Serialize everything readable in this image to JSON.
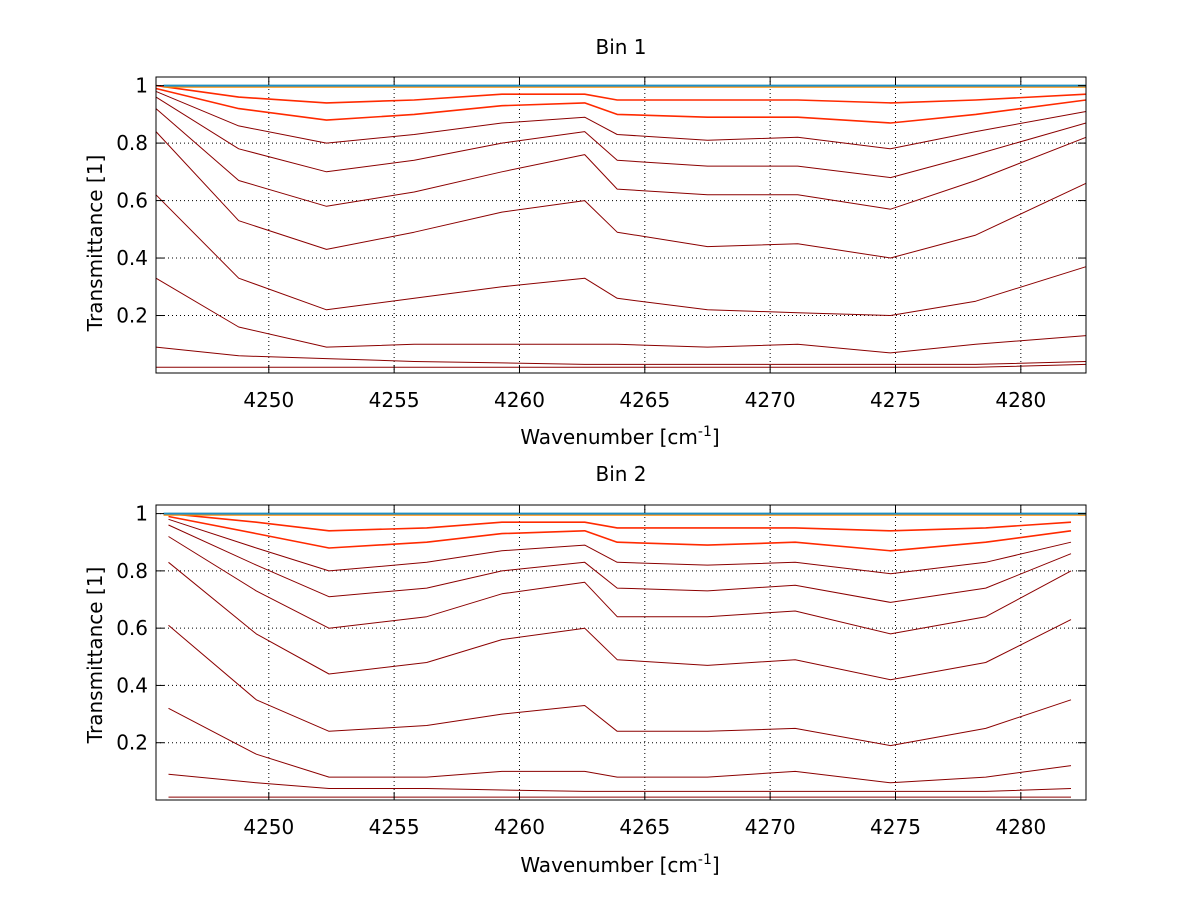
{
  "chart_data": [
    {
      "type": "line",
      "title": "Bin 1",
      "xlabel": "Wavenumber [cm",
      "xlabel_sup": "-1",
      "xlabel_tail": "]",
      "ylabel": "Transmittance [1]",
      "xlim": [
        4245.5,
        4282.6
      ],
      "ylim": [
        0,
        1.03
      ],
      "xticks": [
        "4250",
        "4255",
        "4260",
        "4265",
        "4270",
        "4275",
        "4280"
      ],
      "yticks": [
        "0.2",
        "0.4",
        "0.6",
        "0.8",
        "1"
      ],
      "grid": true,
      "lines": [
        {
          "x": [
            4245.5,
            4248.8,
            4252.3,
            4255.8,
            4259.3,
            4262.6,
            4263.9,
            4267.5,
            4271.1,
            4274.8,
            4278.2,
            4282.6
          ],
          "y": [
            0.02,
            0.02,
            0.02,
            0.02,
            0.02,
            0.02,
            0.02,
            0.02,
            0.02,
            0.02,
            0.02,
            0.03
          ]
        },
        {
          "x": [
            4245.5,
            4248.8,
            4252.3,
            4255.8,
            4259.3,
            4262.6,
            4263.9,
            4267.5,
            4271.1,
            4274.8,
            4278.2,
            4282.6
          ],
          "y": [
            0.09,
            0.06,
            0.05,
            0.04,
            0.035,
            0.03,
            0.03,
            0.03,
            0.03,
            0.03,
            0.03,
            0.04
          ]
        },
        {
          "x": [
            4245.5,
            4248.8,
            4252.3,
            4255.8,
            4259.3,
            4262.6,
            4263.9,
            4267.5,
            4271.1,
            4274.8,
            4278.2,
            4282.6
          ],
          "y": [
            0.33,
            0.16,
            0.09,
            0.1,
            0.1,
            0.1,
            0.1,
            0.09,
            0.1,
            0.07,
            0.1,
            0.13
          ]
        },
        {
          "x": [
            4245.5,
            4248.8,
            4252.3,
            4255.8,
            4259.3,
            4262.6,
            4263.9,
            4267.5,
            4271.1,
            4274.8,
            4278.2,
            4282.6
          ],
          "y": [
            0.62,
            0.33,
            0.22,
            0.26,
            0.3,
            0.33,
            0.26,
            0.22,
            0.21,
            0.2,
            0.25,
            0.37
          ]
        },
        {
          "x": [
            4245.5,
            4248.8,
            4252.3,
            4255.8,
            4259.3,
            4262.6,
            4263.9,
            4267.5,
            4271.1,
            4274.8,
            4278.2,
            4282.6
          ],
          "y": [
            0.84,
            0.53,
            0.43,
            0.49,
            0.56,
            0.6,
            0.49,
            0.44,
            0.45,
            0.4,
            0.48,
            0.66
          ]
        },
        {
          "x": [
            4245.5,
            4248.8,
            4252.3,
            4255.8,
            4259.3,
            4262.6,
            4263.9,
            4267.5,
            4271.1,
            4274.8,
            4278.2,
            4282.6
          ],
          "y": [
            0.92,
            0.67,
            0.58,
            0.63,
            0.7,
            0.76,
            0.64,
            0.62,
            0.62,
            0.57,
            0.67,
            0.82
          ]
        },
        {
          "x": [
            4245.5,
            4248.8,
            4252.3,
            4255.8,
            4259.3,
            4262.6,
            4263.9,
            4267.5,
            4271.1,
            4274.8,
            4278.2,
            4282.6
          ],
          "y": [
            0.96,
            0.78,
            0.7,
            0.74,
            0.8,
            0.84,
            0.74,
            0.72,
            0.72,
            0.68,
            0.76,
            0.87
          ]
        },
        {
          "x": [
            4245.5,
            4248.8,
            4252.3,
            4255.8,
            4259.3,
            4262.6,
            4263.9,
            4267.5,
            4271.1,
            4274.8,
            4278.2,
            4282.6
          ],
          "y": [
            0.98,
            0.86,
            0.8,
            0.83,
            0.87,
            0.89,
            0.83,
            0.81,
            0.82,
            0.78,
            0.84,
            0.91
          ]
        },
        {
          "x": [
            4245.5,
            4248.8,
            4252.3,
            4255.8,
            4259.3,
            4262.6,
            4263.9,
            4267.5,
            4271.1,
            4274.8,
            4278.2,
            4282.6
          ],
          "y": [
            0.99,
            0.92,
            0.88,
            0.9,
            0.93,
            0.94,
            0.9,
            0.89,
            0.89,
            0.87,
            0.9,
            0.95
          ]
        },
        {
          "x": [
            4245.5,
            4248.8,
            4252.3,
            4255.8,
            4259.3,
            4262.6,
            4263.9,
            4267.5,
            4271.1,
            4274.8,
            4278.2,
            4282.6
          ],
          "y": [
            1.0,
            0.96,
            0.94,
            0.95,
            0.97,
            0.97,
            0.95,
            0.95,
            0.95,
            0.94,
            0.95,
            0.97
          ]
        }
      ]
    },
    {
      "type": "line",
      "title": "Bin 2",
      "xlabel": "Wavenumber [cm",
      "xlabel_sup": "-1",
      "xlabel_tail": "]",
      "ylabel": "Transmittance [1]",
      "xlim": [
        4245.5,
        4282.6
      ],
      "ylim": [
        0,
        1.03
      ],
      "xticks": [
        "4250",
        "4255",
        "4260",
        "4265",
        "4270",
        "4275",
        "4280"
      ],
      "yticks": [
        "0.2",
        "0.4",
        "0.6",
        "0.8",
        "1"
      ],
      "grid": true,
      "lines": [
        {
          "x": [
            4246.0,
            4249.5,
            4252.4,
            4256.3,
            4259.3,
            4262.6,
            4263.9,
            4267.5,
            4271.0,
            4274.8,
            4278.6,
            4282.0
          ],
          "y": [
            0.01,
            0.01,
            0.01,
            0.01,
            0.01,
            0.01,
            0.01,
            0.01,
            0.01,
            0.01,
            0.01,
            0.01
          ]
        },
        {
          "x": [
            4246.0,
            4249.5,
            4252.4,
            4256.3,
            4259.3,
            4262.6,
            4263.9,
            4267.5,
            4271.0,
            4274.8,
            4278.6,
            4282.0
          ],
          "y": [
            0.09,
            0.06,
            0.04,
            0.04,
            0.035,
            0.03,
            0.03,
            0.03,
            0.03,
            0.03,
            0.03,
            0.04
          ]
        },
        {
          "x": [
            4246.0,
            4249.5,
            4252.4,
            4256.3,
            4259.3,
            4262.6,
            4263.9,
            4267.5,
            4271.0,
            4274.8,
            4278.6,
            4282.0
          ],
          "y": [
            0.32,
            0.16,
            0.08,
            0.08,
            0.1,
            0.1,
            0.08,
            0.08,
            0.1,
            0.06,
            0.08,
            0.12
          ]
        },
        {
          "x": [
            4246.0,
            4249.5,
            4252.4,
            4256.3,
            4259.3,
            4262.6,
            4263.9,
            4267.5,
            4271.0,
            4274.8,
            4278.6,
            4282.0
          ],
          "y": [
            0.61,
            0.35,
            0.24,
            0.26,
            0.3,
            0.33,
            0.24,
            0.24,
            0.25,
            0.19,
            0.25,
            0.35
          ]
        },
        {
          "x": [
            4246.0,
            4249.5,
            4252.4,
            4256.3,
            4259.3,
            4262.6,
            4263.9,
            4267.5,
            4271.0,
            4274.8,
            4278.6,
            4282.0
          ],
          "y": [
            0.83,
            0.58,
            0.44,
            0.48,
            0.56,
            0.6,
            0.49,
            0.47,
            0.49,
            0.42,
            0.48,
            0.63
          ]
        },
        {
          "x": [
            4246.0,
            4249.5,
            4252.4,
            4256.3,
            4259.3,
            4262.6,
            4263.9,
            4267.5,
            4271.0,
            4274.8,
            4278.6,
            4282.0
          ],
          "y": [
            0.92,
            0.73,
            0.6,
            0.64,
            0.72,
            0.76,
            0.64,
            0.64,
            0.66,
            0.58,
            0.64,
            0.8
          ]
        },
        {
          "x": [
            4246.0,
            4249.5,
            4252.4,
            4256.3,
            4259.3,
            4262.6,
            4263.9,
            4267.5,
            4271.0,
            4274.8,
            4278.6,
            4282.0
          ],
          "y": [
            0.96,
            0.82,
            0.71,
            0.74,
            0.8,
            0.83,
            0.74,
            0.73,
            0.75,
            0.69,
            0.74,
            0.86
          ]
        },
        {
          "x": [
            4246.0,
            4249.5,
            4252.4,
            4256.3,
            4259.3,
            4262.6,
            4263.9,
            4267.5,
            4271.0,
            4274.8,
            4278.6,
            4282.0
          ],
          "y": [
            0.98,
            0.88,
            0.8,
            0.83,
            0.87,
            0.89,
            0.83,
            0.82,
            0.83,
            0.79,
            0.83,
            0.9
          ]
        },
        {
          "x": [
            4246.0,
            4249.5,
            4252.4,
            4256.3,
            4259.3,
            4262.6,
            4263.9,
            4267.5,
            4271.0,
            4274.8,
            4278.6,
            4282.0
          ],
          "y": [
            0.99,
            0.93,
            0.88,
            0.9,
            0.93,
            0.94,
            0.9,
            0.89,
            0.9,
            0.87,
            0.9,
            0.94
          ]
        },
        {
          "x": [
            4246.0,
            4249.5,
            4252.4,
            4256.3,
            4259.3,
            4262.6,
            4263.9,
            4267.5,
            4271.0,
            4274.8,
            4278.6,
            4282.0
          ],
          "y": [
            1.0,
            0.97,
            0.94,
            0.95,
            0.97,
            0.97,
            0.95,
            0.95,
            0.95,
            0.94,
            0.95,
            0.97
          ]
        }
      ]
    }
  ],
  "colors": {
    "line_main": "#8b0000",
    "line_near_top": "#ff2a00",
    "line_orange": "#ff8c00",
    "line_yellow": "#ffd000",
    "line_top": "#1e90c8",
    "grid": "#000000",
    "axis": "#000000",
    "background": "#ffffff"
  }
}
